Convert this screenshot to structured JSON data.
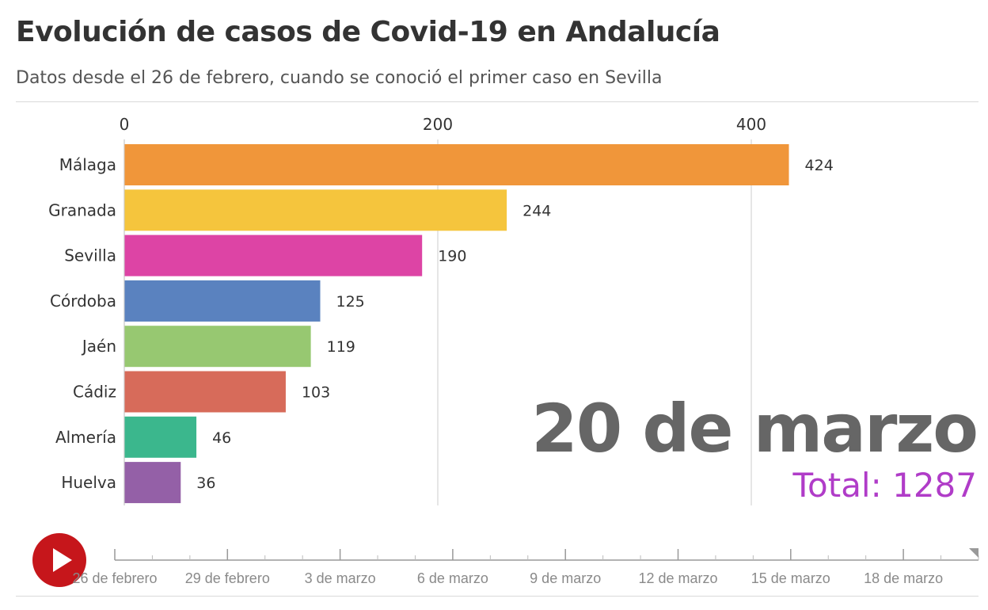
{
  "header": {
    "title": "Evolución de casos de Covid-19 en Andalucía",
    "subtitle": "Datos desde el 26 de febrero, cuando se conoció el primer caso en Sevilla"
  },
  "chart_data": {
    "type": "bar",
    "orientation": "horizontal",
    "title": "Evolución de casos de Covid-19 en Andalucía",
    "subtitle": "Datos desde el 26 de febrero, cuando se conoció el primer caso en Sevilla",
    "categories": [
      "Málaga",
      "Granada",
      "Sevilla",
      "Córdoba",
      "Jaén",
      "Cádiz",
      "Almería",
      "Huelva"
    ],
    "values": [
      424,
      244,
      190,
      125,
      119,
      103,
      46,
      36
    ],
    "colors": [
      "#f0963a",
      "#f5c53d",
      "#dd44a5",
      "#5a82bf",
      "#97c871",
      "#d76b5a",
      "#3bb78d",
      "#9460a7"
    ],
    "xticks": [
      0,
      200,
      400
    ],
    "xlim": [
      0,
      530
    ],
    "grid": true,
    "date": "20 de marzo",
    "total": "Total: 1287"
  },
  "timeline": {
    "labels": [
      "26 de febrero",
      "29 de febrero",
      "3 de marzo",
      "6 de marzo",
      "9 de marzo",
      "12 de marzo",
      "15 de marzo",
      "18 de marzo"
    ],
    "tick_count": 8,
    "current": "20 de marzo"
  },
  "colors": {
    "play_button": "#c6161b",
    "total_text": "#b03cc8",
    "date_text": "#666666",
    "grid": "#dddddd"
  }
}
